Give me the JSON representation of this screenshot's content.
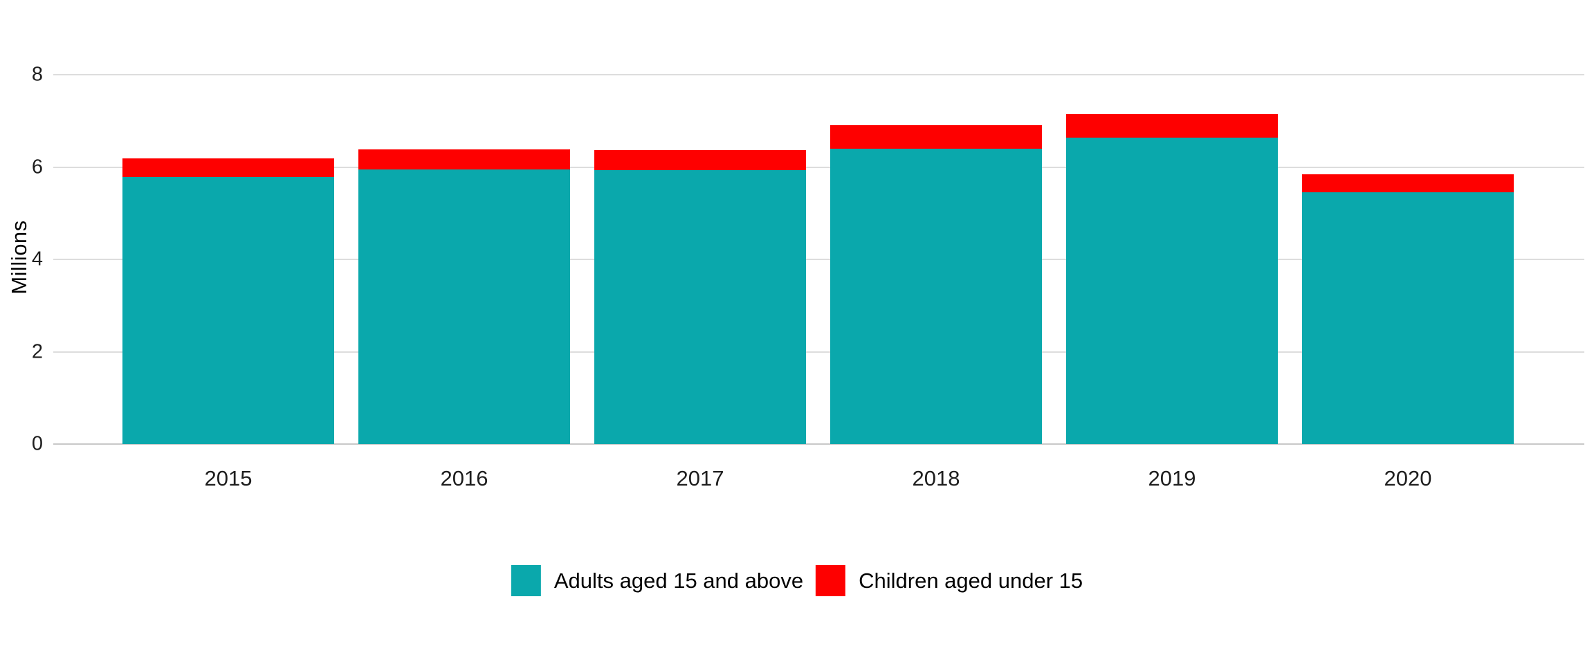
{
  "chart_data": {
    "type": "bar",
    "stacked": true,
    "ylabel": "Millions",
    "categories": [
      "2015",
      "2016",
      "2017",
      "2018",
      "2019",
      "2020"
    ],
    "series": [
      {
        "name": "Adults aged 15 and above",
        "color": "#0aa8ac",
        "values": [
          5.79,
          5.94,
          5.93,
          6.4,
          6.64,
          5.46
        ]
      },
      {
        "name": "Children aged under 15",
        "color": "#fe0000",
        "values": [
          0.4,
          0.44,
          0.44,
          0.51,
          0.51,
          0.39
        ]
      }
    ],
    "totals": [
      6.19,
      6.38,
      6.37,
      6.91,
      7.15,
      5.85
    ],
    "ylim": [
      0,
      8
    ],
    "yticks": [
      0,
      2,
      4,
      6,
      8
    ],
    "grid": true,
    "legend_position": "bottom",
    "grid_color": "#dddddd",
    "text_color": "#1e1e1e"
  }
}
